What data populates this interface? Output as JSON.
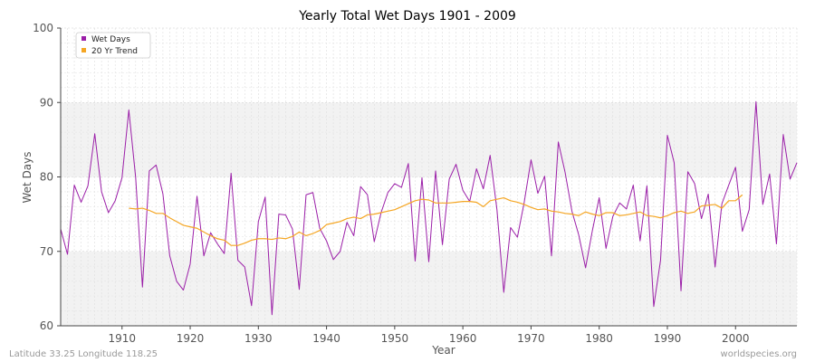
{
  "chart_data": {
    "type": "line",
    "title": "Yearly Total Wet Days 1901 - 2009",
    "xlabel": "Year",
    "ylabel": "Wet Days",
    "xlim": [
      1901,
      2009
    ],
    "ylim": [
      60,
      100
    ],
    "x_ticks": [
      1910,
      1920,
      1930,
      1940,
      1950,
      1960,
      1970,
      1980,
      1990,
      2000
    ],
    "y_ticks": [
      60,
      70,
      80,
      90,
      100
    ],
    "grid": true,
    "legend_position": "top-left",
    "colors": {
      "wet_days": "#9b1fa8",
      "trend": "#f5a623",
      "band": "#f2f2f2",
      "grid": "#dddddd"
    },
    "series": [
      {
        "name": "Wet Days",
        "x_start": 1901,
        "values": [
          73.0,
          69.6,
          78.9,
          76.6,
          78.8,
          85.8,
          78.0,
          75.2,
          76.8,
          79.9,
          89.0,
          79.9,
          65.2,
          80.8,
          81.6,
          77.7,
          69.4,
          66.0,
          64.8,
          68.3,
          77.4,
          69.4,
          72.5,
          71.0,
          69.7,
          80.5,
          68.8,
          67.9,
          62.7,
          74.0,
          77.3,
          61.5,
          75.0,
          74.9,
          73.0,
          64.9,
          77.6,
          77.9,
          73.1,
          71.4,
          68.9,
          70.0,
          73.9,
          72.1,
          78.7,
          77.6,
          71.3,
          75.2,
          77.9,
          79.1,
          78.6,
          81.8,
          68.7,
          79.9,
          68.6,
          80.8,
          70.9,
          79.7,
          81.7,
          78.2,
          76.7,
          81.1,
          78.4,
          82.9,
          75.6,
          64.5,
          73.2,
          71.9,
          76.6,
          82.3,
          77.8,
          80.1,
          69.4,
          84.7,
          80.6,
          75.4,
          72.2,
          67.8,
          72.8,
          77.2,
          70.4,
          74.7,
          76.5,
          75.7,
          78.9,
          71.4,
          78.8,
          62.6,
          68.8,
          85.6,
          81.9,
          64.7,
          80.7,
          79.1,
          74.4,
          77.7,
          67.9,
          76.4,
          78.9,
          81.3,
          72.7,
          75.6,
          90.1,
          76.3,
          80.4,
          71.0,
          85.7,
          79.7,
          81.9
        ]
      },
      {
        "name": "20 Yr Trend",
        "x_start": 1911,
        "values": [
          75.8,
          75.7,
          75.8,
          75.5,
          75.1,
          75.1,
          74.5,
          74.0,
          73.5,
          73.3,
          73.1,
          72.6,
          72.1,
          71.7,
          71.5,
          70.8,
          70.8,
          71.1,
          71.5,
          71.7,
          71.7,
          71.6,
          71.8,
          71.7,
          72.0,
          72.6,
          72.1,
          72.4,
          72.8,
          73.6,
          73.8,
          74.0,
          74.4,
          74.6,
          74.4,
          74.9,
          75.0,
          75.2,
          75.4,
          75.6,
          76.0,
          76.4,
          76.8,
          77.0,
          76.9,
          76.5,
          76.5,
          76.5,
          76.6,
          76.7,
          76.7,
          76.6,
          76.0,
          76.8,
          77.0,
          77.2,
          76.8,
          76.6,
          76.3,
          75.9,
          75.6,
          75.7,
          75.4,
          75.3,
          75.1,
          75.0,
          74.8,
          75.3,
          75.0,
          74.8,
          75.2,
          75.2,
          74.8,
          74.9,
          75.1,
          75.3,
          74.8,
          74.7,
          74.5,
          74.8,
          75.2,
          75.4,
          75.1,
          75.3,
          76.1,
          76.2,
          76.3,
          75.8,
          76.8,
          76.8,
          77.6
        ]
      }
    ]
  },
  "footer": {
    "left": "Latitude 33.25 Longitude 118.25",
    "right": "worldspecies.org"
  }
}
